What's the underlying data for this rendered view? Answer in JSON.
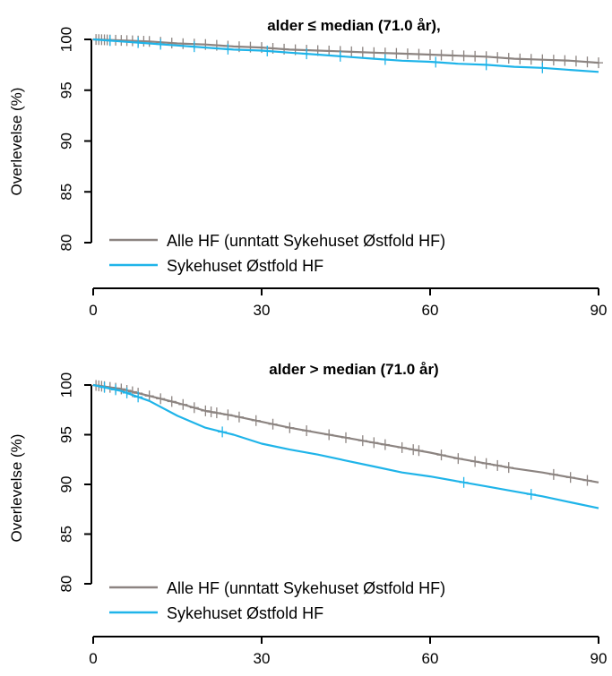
{
  "colors": {
    "alle": "#8C8481",
    "ostfold": "#1FB4E9"
  },
  "chart_data": [
    {
      "type": "line",
      "title": "alder ≤ median (71.0 år),",
      "xlabel": "",
      "ylabel": "Overlevelse (%)",
      "xlim": [
        0,
        90
      ],
      "ylim": [
        80,
        100
      ],
      "xticks": [
        0,
        30,
        60,
        90
      ],
      "xtick_labels": [
        "0",
        "30",
        "60",
        "90"
      ],
      "yticks": [
        80,
        85,
        90,
        95,
        100
      ],
      "ytick_labels": [
        "80",
        "85",
        "90",
        "95",
        "100"
      ],
      "legend_position": "bottom-left",
      "grid": false,
      "series": [
        {
          "name": "Alle HF (unntatt Sykehuset Østfold HF)",
          "color": "#8C8481",
          "x": [
            0,
            5,
            10,
            15,
            20,
            25,
            30,
            35,
            40,
            45,
            50,
            55,
            60,
            65,
            70,
            75,
            80,
            85,
            90
          ],
          "y": [
            100,
            99.9,
            99.8,
            99.6,
            99.5,
            99.3,
            99.2,
            99.0,
            98.9,
            98.8,
            98.7,
            98.6,
            98.5,
            98.4,
            98.3,
            98.1,
            98.0,
            97.9,
            97.7
          ],
          "censor_x": [
            0.5,
            1,
            1.5,
            2,
            2.5,
            3,
            4,
            5,
            6,
            7,
            8,
            9,
            10,
            12,
            14,
            16,
            18,
            20,
            22,
            24,
            26,
            28,
            30,
            32,
            34,
            36,
            38,
            40,
            42,
            44,
            46,
            48,
            50,
            52,
            54,
            56,
            58,
            60,
            62,
            64,
            66,
            68,
            70,
            72,
            74,
            76,
            78,
            80,
            82,
            84,
            86,
            88,
            90
          ]
        },
        {
          "name": "Sykehuset Østfold HF",
          "color": "#1FB4E9",
          "x": [
            0,
            5,
            10,
            15,
            20,
            25,
            30,
            35,
            40,
            45,
            50,
            55,
            60,
            65,
            70,
            75,
            80,
            85,
            90
          ],
          "y": [
            100,
            99.8,
            99.6,
            99.4,
            99.2,
            99.0,
            98.9,
            98.7,
            98.5,
            98.3,
            98.1,
            97.9,
            97.8,
            97.6,
            97.5,
            97.3,
            97.2,
            97.0,
            96.8
          ],
          "censor_x": [
            3,
            8,
            12,
            18,
            24,
            31,
            38,
            44,
            52,
            61,
            70,
            80
          ]
        }
      ]
    },
    {
      "type": "line",
      "title": "alder > median (71.0 år)",
      "xlabel": "",
      "ylabel": "Overlevelse (%)",
      "xlim": [
        0,
        90
      ],
      "ylim": [
        80,
        100
      ],
      "xticks": [
        0,
        30,
        60,
        90
      ],
      "xtick_labels": [
        "0",
        "30",
        "60",
        "90"
      ],
      "yticks": [
        80,
        85,
        90,
        95,
        100
      ],
      "ytick_labels": [
        "80",
        "85",
        "90",
        "95",
        "100"
      ],
      "legend_position": "bottom-left",
      "grid": false,
      "series": [
        {
          "name": "Alle HF (unntatt Sykehuset Østfold HF)",
          "color": "#8C8481",
          "x": [
            0,
            5,
            10,
            15,
            20,
            25,
            30,
            35,
            40,
            45,
            50,
            55,
            60,
            65,
            70,
            75,
            80,
            85,
            90
          ],
          "y": [
            100,
            99.6,
            98.9,
            98.2,
            97.4,
            96.9,
            96.3,
            95.7,
            95.2,
            94.7,
            94.2,
            93.7,
            93.2,
            92.6,
            92.1,
            91.6,
            91.2,
            90.7,
            90.2
          ],
          "censor_x": [
            0.5,
            1,
            1.5,
            2,
            3,
            4,
            5,
            6,
            7,
            8,
            10,
            12,
            14,
            16,
            18,
            20,
            21,
            22,
            24,
            26,
            29,
            32,
            35,
            38,
            42,
            45,
            48,
            50,
            52,
            55,
            57,
            58,
            62,
            65,
            68,
            70,
            72,
            74,
            82,
            85,
            88
          ]
        },
        {
          "name": "Sykehuset Østfold HF",
          "color": "#1FB4E9",
          "x": [
            0,
            5,
            10,
            15,
            20,
            25,
            30,
            35,
            40,
            45,
            50,
            55,
            60,
            65,
            70,
            75,
            80,
            85,
            90
          ],
          "y": [
            100,
            99.4,
            98.4,
            96.9,
            95.7,
            95.0,
            94.1,
            93.5,
            93.0,
            92.4,
            91.8,
            91.2,
            90.8,
            90.3,
            89.8,
            89.3,
            88.8,
            88.2,
            87.6
          ],
          "censor_x": [
            2,
            4,
            6,
            8,
            23,
            66,
            78
          ]
        }
      ]
    }
  ]
}
